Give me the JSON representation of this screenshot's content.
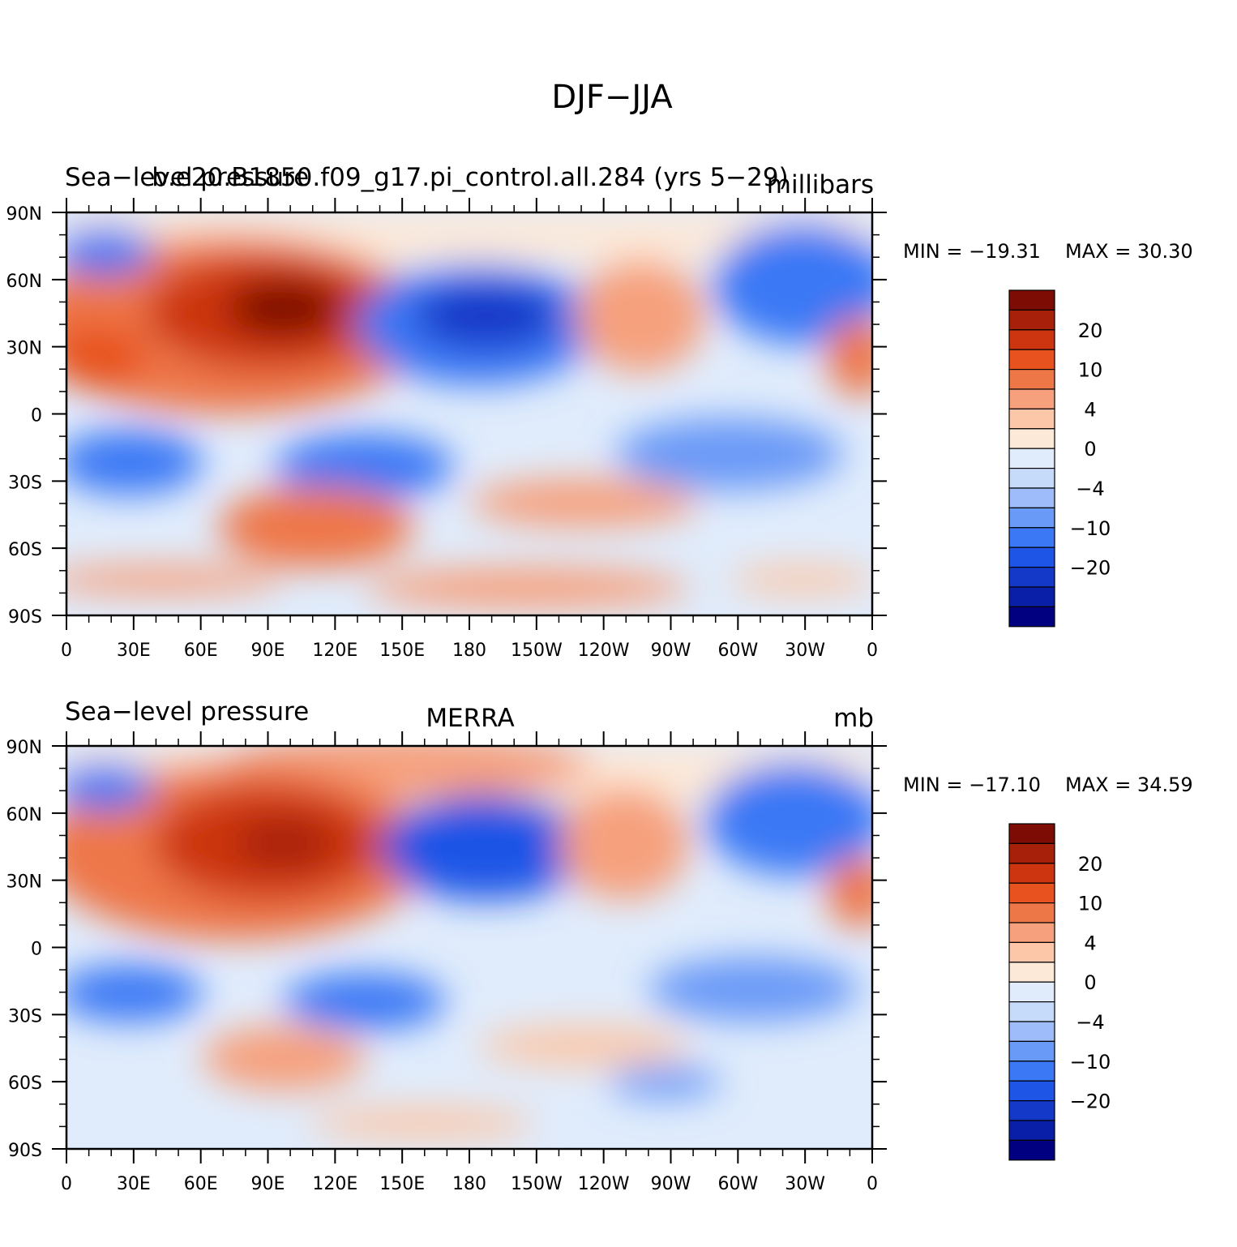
{
  "title": "DJF−JJA",
  "palette": [
    "#000080",
    "#0a1fa8",
    "#1438c8",
    "#1f55e6",
    "#3b78f5",
    "#6a9af7",
    "#9dbcf9",
    "#c6daf9",
    "#e0ecfc",
    "#fde9d8",
    "#fbc7a8",
    "#f6a07d",
    "#ee7748",
    "#e8521f",
    "#cc3510",
    "#a6200a",
    "#7d0c05"
  ],
  "lon_ticks": [
    "0",
    "30E",
    "60E",
    "90E",
    "120E",
    "150E",
    "180",
    "150W",
    "120W",
    "90W",
    "60W",
    "30W",
    "0"
  ],
  "lat_ticks": [
    "90N",
    "60N",
    "30N",
    "0",
    "30S",
    "60S",
    "90S"
  ],
  "panels": [
    {
      "left_text": "Sea−level pressure",
      "center_text": "b.e20.B1850.f09_g17.pi_control.all.284 (yrs 5−29)",
      "right_text": "millibars",
      "min_label": "MIN = −19.31",
      "max_label": "MAX =   30.30",
      "colorbar_labels": [
        "20",
        "10",
        "4",
        "0",
        "−4",
        "−10",
        "−20"
      ]
    },
    {
      "left_text": "Sea−level pressure",
      "center_text": "MERRA",
      "right_text": "mb",
      "min_label": "MIN = −17.10",
      "max_label": "MAX =   34.59",
      "colorbar_labels": [
        "20",
        "10",
        "4",
        "0",
        "−4",
        "−10",
        "−20"
      ]
    }
  ]
}
